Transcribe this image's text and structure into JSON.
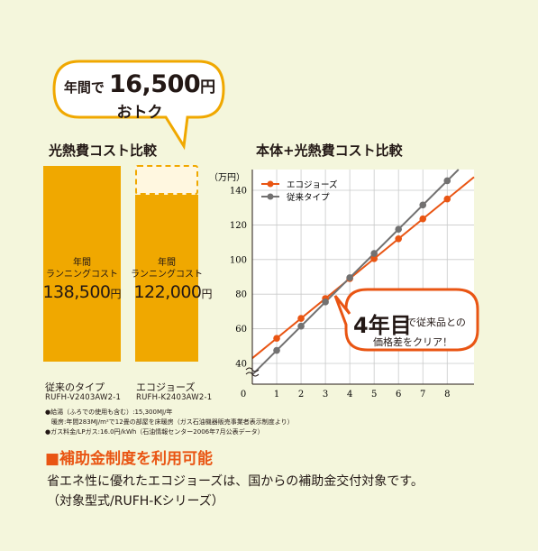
{
  "savings_bubble": {
    "prefix": "年間で",
    "amount": "16,500",
    "unit": "円",
    "line2": "おトク"
  },
  "bar_section": {
    "title": "光熱費コスト比較",
    "bars": [
      {
        "label_top": "年間",
        "label_mid": "ランニングコスト",
        "value_text": "138,500",
        "unit": "円",
        "type_name": "従来のタイプ",
        "model": "RUFH-V2403AW2-1"
      },
      {
        "label_top": "年間",
        "label_mid": "ランニングコスト",
        "value_text": "122,000",
        "unit": "円",
        "type_name": "エコジョーズ",
        "model": "RUFH-K2403AW2-1"
      }
    ]
  },
  "line_section": {
    "title": "本体+光熱費コスト比較",
    "callout_big": "4年目",
    "callout_rest1": "で従来品との",
    "callout_rest2": "価格差をクリア！"
  },
  "notes": {
    "line1": "●給湯（ふろでの使用も含む）:15,300MJ/年",
    "line2": "　暖房:年間283MJ/m²で12畳の部屋を床暖房（ガス石油機器販売事業者表示制度より）",
    "line3": "●ガス料金/LPガス:16.0円/kWh（石油情報センター2006年7月公表データ）"
  },
  "subsidy": {
    "title": "■補助金制度を利用可能",
    "text1": "省エネ性に優れたエコジョーズは、国からの補助金交付対象です。",
    "text2": "（対象型式/RUFH-Kシリーズ）"
  },
  "colors": {
    "bar": "#f0a800",
    "eco": "#e95513",
    "conventional": "#727171",
    "background": "#f4f6dc"
  },
  "chart_data": [
    {
      "type": "bar",
      "title": "光熱費コスト比較",
      "categories": [
        "従来のタイプ",
        "エコジョーズ"
      ],
      "values": [
        138500,
        122000
      ],
      "unit": "円"
    },
    {
      "type": "line",
      "title": "本体+光熱費コスト比較",
      "ylabel": "（万円）",
      "x": [
        1,
        2,
        3,
        4,
        5,
        6,
        7,
        8
      ],
      "x_ticks": [
        0,
        1,
        2,
        3,
        4,
        5,
        6,
        7,
        8
      ],
      "y_ticks": [
        40,
        60,
        80,
        100,
        120,
        140
      ],
      "ylim": [
        28,
        152
      ],
      "xlim": [
        0,
        9.1
      ],
      "y_axis_break": true,
      "grid": true,
      "legend_position": "top-left",
      "series": [
        {
          "name": "エコジョーズ",
          "color": "#e95513",
          "values": [
            54.5,
            66,
            77.5,
            89,
            100.5,
            112,
            123.5,
            135
          ],
          "line_start": 42,
          "line_end": 145.5
        },
        {
          "name": "従来タイプ",
          "color": "#727171",
          "values": [
            47.5,
            61.5,
            75.5,
            89.5,
            103.5,
            117.5,
            131.5,
            145.5
          ],
          "line_start": 33.5,
          "line_end": 158
        }
      ]
    }
  ]
}
